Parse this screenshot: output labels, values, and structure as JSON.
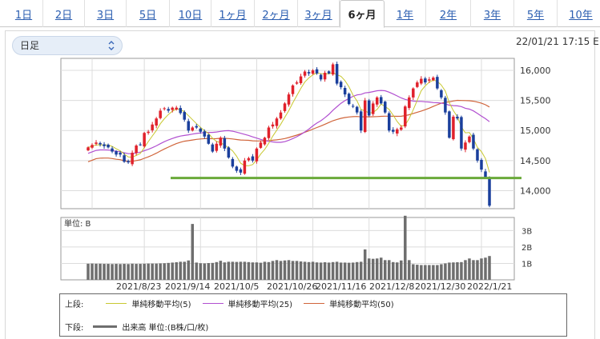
{
  "tabs": [
    {
      "label": "1日"
    },
    {
      "label": "2日"
    },
    {
      "label": "3日"
    },
    {
      "label": "5日"
    },
    {
      "label": "10日"
    },
    {
      "label": "1ヶ月"
    },
    {
      "label": "2ヶ月"
    },
    {
      "label": "3ヶ月"
    },
    {
      "label": "6ヶ月",
      "active": true
    },
    {
      "label": "1年"
    },
    {
      "label": "2年"
    },
    {
      "label": "3年"
    },
    {
      "label": "5年"
    },
    {
      "label": "10年"
    }
  ],
  "chart_type_select": {
    "value": "日足"
  },
  "timestamp": "22/01/21 17:15 E",
  "colors": {
    "up": "#e0212b",
    "down": "#1a3f9c",
    "ma5": "#c8c830",
    "ma25": "#b14fd0",
    "ma50": "#d0643a",
    "support": "#6aaa3a",
    "volume": "#6e6e6e",
    "grid": "#dcdcdc"
  },
  "chart_data": [
    {
      "type": "candlestick",
      "x_tick_labels": [
        "2021/8/23",
        "2021/9/14",
        "2021/10/5",
        "2021/10/26",
        "2021/11/16",
        "2021/12/8",
        "2021/12/30",
        "2022/1/21"
      ],
      "y_tick_labels": [
        "16,000",
        "15,500",
        "15,000",
        "14,500",
        "14,000"
      ],
      "ylim": [
        13700,
        16200
      ],
      "support_level": 14210,
      "closes": [
        14720,
        14760,
        14800,
        14770,
        14740,
        14720,
        14650,
        14600,
        14600,
        14480,
        14470,
        14630,
        14750,
        14760,
        14960,
        14980,
        15100,
        15200,
        15330,
        15370,
        15330,
        15380,
        15380,
        15290,
        15180,
        15000,
        15050,
        15050,
        14980,
        14900,
        14780,
        14650,
        14780,
        14880,
        14700,
        14550,
        14400,
        14330,
        14300,
        14500,
        14540,
        14500,
        14700,
        14800,
        14880,
        15050,
        15100,
        15200,
        15300,
        15450,
        15600,
        15750,
        15800,
        15900,
        15980,
        15950,
        16000,
        15950,
        15850,
        15960,
        15950,
        16100,
        15780,
        15720,
        15600,
        15440,
        15400,
        15300,
        15000,
        15500,
        15250,
        15450,
        15550,
        15450,
        15300,
        15000,
        14980,
        15020,
        15050,
        15400,
        15550,
        15700,
        15800,
        15860,
        15800,
        15850,
        15880,
        15700,
        15550,
        15300,
        14880,
        15230,
        15200,
        14700,
        14800,
        14900,
        14700,
        14500,
        14350,
        14220,
        13750
      ],
      "volumes_b": [
        0.98,
        0.99,
        0.98,
        0.98,
        0.97,
        0.97,
        0.96,
        0.97,
        0.96,
        0.97,
        0.96,
        0.98,
        0.97,
        0.97,
        0.98,
        0.99,
        0.99,
        0.99,
        1.0,
        1.01,
        1.03,
        1.05,
        1.07,
        1.1,
        1.1,
        1.18,
        3.4,
        1.05,
        1.01,
        1.0,
        1.02,
        1.03,
        1.08,
        1.16,
        1.06,
        1.1,
        1.1,
        1.09,
        1.1,
        1.1,
        1.08,
        1.06,
        1.06,
        1.04,
        1.1,
        1.08,
        1.15,
        1.2,
        1.15,
        1.18,
        1.2,
        1.15,
        1.15,
        1.12,
        1.1,
        1.08,
        1.1,
        1.06,
        1.05,
        1.07,
        1.05,
        1.08,
        1.1,
        1.05,
        1.05,
        1.04,
        1.05,
        1.08,
        1.1,
        1.85,
        1.3,
        1.28,
        1.3,
        1.35,
        1.2,
        1.2,
        1.08,
        1.06,
        1.18,
        3.9,
        1.2,
        0.95,
        0.92,
        0.9,
        0.9,
        0.9,
        0.9,
        0.9,
        0.95,
        1.0,
        1.05,
        1.06,
        1.07,
        1.08,
        1.2,
        1.3,
        1.2,
        1.2,
        1.3,
        1.35,
        1.45
      ]
    }
  ],
  "volume_panel": {
    "unit_label": "単位: B",
    "y_tick_labels": [
      "3B",
      "2B",
      "1B"
    ]
  },
  "legend": {
    "upper_label": "上段:",
    "lower_label": "下段:",
    "ma5_label": "単純移動平均(5)",
    "ma25_label": "単純移動平均(25)",
    "ma50_label": "単純移動平均(50)",
    "volume_label": "出来高 単位:(B株/口/枚)"
  }
}
